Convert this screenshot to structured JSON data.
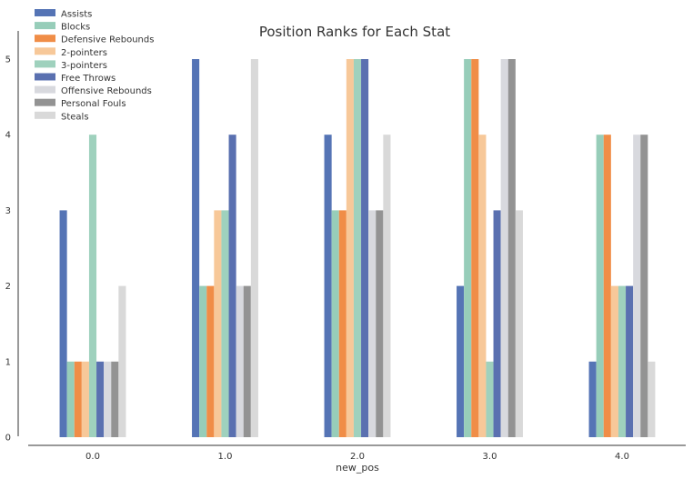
{
  "chart_data": {
    "type": "bar",
    "title": "Position Ranks for Each Stat",
    "xlabel": "new_pos",
    "ylabel": "",
    "categories": [
      "0.0",
      "1.0",
      "2.0",
      "3.0",
      "4.0"
    ],
    "ylim": [
      0,
      5.2
    ],
    "yticks": [
      0,
      1,
      2,
      3,
      4,
      5
    ],
    "grid": false,
    "legend_position": "top-left",
    "series": [
      {
        "name": "Assists",
        "color": "#5574b5",
        "values": [
          3,
          5,
          4,
          2,
          1
        ]
      },
      {
        "name": "Blocks",
        "color": "#97cdb9",
        "values": [
          1,
          2,
          3,
          5,
          4
        ]
      },
      {
        "name": "Defensive Rebounds",
        "color": "#f08d47",
        "values": [
          1,
          2,
          3,
          5,
          4
        ]
      },
      {
        "name": "2-pointers",
        "color": "#f7c899",
        "values": [
          1,
          3,
          5,
          4,
          2
        ]
      },
      {
        "name": "3-pointers",
        "color": "#9fd1bd",
        "values": [
          4,
          3,
          5,
          1,
          2
        ]
      },
      {
        "name": "Free Throws",
        "color": "#5a70b0",
        "values": [
          1,
          4,
          5,
          3,
          2
        ]
      },
      {
        "name": "Offensive Rebounds",
        "color": "#d8d9de",
        "values": [
          1,
          2,
          3,
          5,
          4
        ]
      },
      {
        "name": "Personal Fouls",
        "color": "#939393",
        "values": [
          1,
          2,
          3,
          5,
          4
        ]
      },
      {
        "name": "Steals",
        "color": "#d9d9d9",
        "values": [
          2,
          5,
          4,
          3,
          1
        ]
      }
    ]
  }
}
